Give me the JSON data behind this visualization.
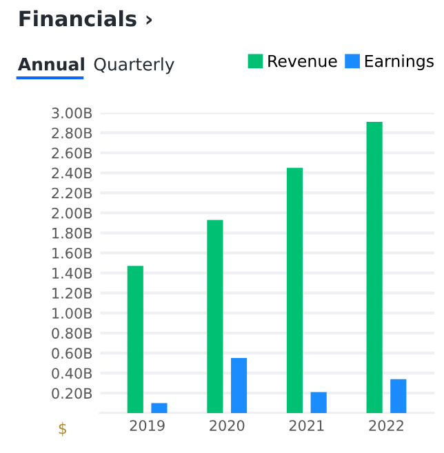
{
  "chart_data": {
    "type": "bar",
    "title": "Financials ›",
    "ylabel": "$",
    "annotations": [
      "Annual",
      "Quarterly"
    ],
    "categories": [
      "2019",
      "2020",
      "2021",
      "2022"
    ],
    "series": [
      {
        "name": "Revenue",
        "color": "#00c073",
        "values": [
          1.47,
          1.93,
          2.45,
          2.91
        ]
      },
      {
        "name": "Earnings",
        "color": "#1a8cff",
        "values": [
          0.1,
          0.55,
          0.21,
          0.34
        ]
      }
    ],
    "ylim": [
      0,
      3.0
    ],
    "yticks": [
      {
        "value": 0,
        "label": null
      },
      {
        "value": 0.2,
        "label": "0.20B"
      },
      {
        "value": 0.4,
        "label": "0.40B"
      },
      {
        "value": 0.6,
        "label": "0.60B"
      },
      {
        "value": 0.8,
        "label": "0.80B"
      },
      {
        "value": 1.0,
        "label": "1.00B"
      },
      {
        "value": 1.2,
        "label": "1.20B"
      },
      {
        "value": 1.4,
        "label": "1.40B"
      },
      {
        "value": 1.6,
        "label": "1.60B"
      },
      {
        "value": 1.8,
        "label": "1.80B"
      },
      {
        "value": 2.0,
        "label": "2.00B"
      },
      {
        "value": 2.2,
        "label": "2.20B"
      },
      {
        "value": 2.4,
        "label": "2.40B"
      },
      {
        "value": 2.6,
        "label": "2.60B"
      },
      {
        "value": 2.8,
        "label": "2.80B"
      },
      {
        "value": 3.0,
        "label": "3.00B"
      }
    ],
    "grid": "y",
    "legend": "top right"
  }
}
